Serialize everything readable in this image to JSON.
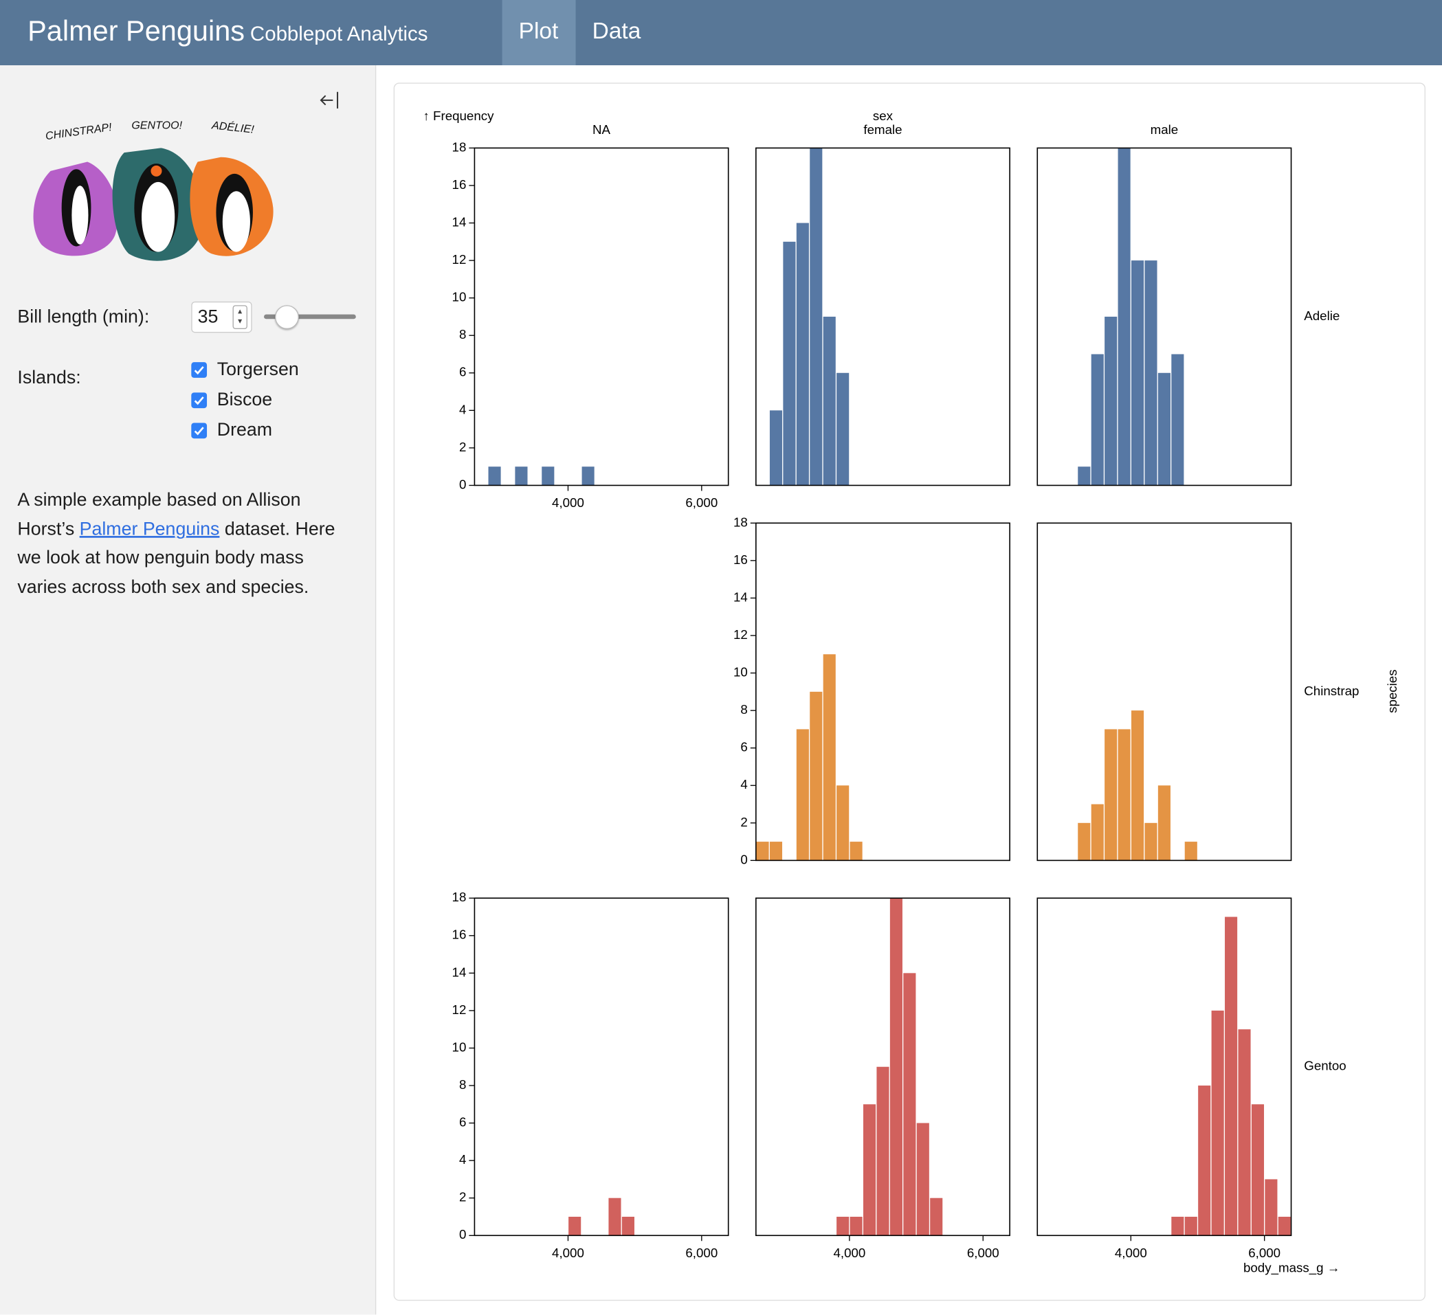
{
  "header": {
    "title": "Palmer Penguins",
    "subtitle": "Cobblepot Analytics",
    "tabs": [
      "Plot",
      "Data"
    ]
  },
  "sidebar": {
    "illustration_labels": [
      "CHINSTRAP!",
      "GENTOO!",
      "ADÉLIE!"
    ],
    "bill_length": {
      "label": "Bill length (min):",
      "value": 35
    },
    "islands": {
      "label": "Islands:",
      "options": [
        {
          "name": "Torgersen",
          "checked": true
        },
        {
          "name": "Biscoe",
          "checked": true
        },
        {
          "name": "Dream",
          "checked": true
        }
      ]
    },
    "description": {
      "before": "A simple example based on Allison Horst’s ",
      "link": "Palmer Penguins",
      "after": " dataset. Here we look at how penguin body mass varies across both sex and species."
    }
  },
  "chart_data": {
    "type": "histogram",
    "y_label": "↑ Frequency",
    "x_label": "body_mass_g →",
    "facet_x_label": "sex",
    "facet_y_label": "species",
    "columns": [
      "NA",
      "female",
      "male"
    ],
    "bins": [
      2600,
      2800,
      3000,
      3200,
      3400,
      3600,
      3800,
      4000,
      4200,
      4400,
      4600,
      4800,
      5000,
      5200,
      5400,
      5600,
      5800,
      6000,
      6200,
      6400
    ],
    "xlim": [
      2600,
      6400
    ],
    "ylim": [
      0,
      18
    ],
    "xticks": [
      {
        "value": 4000,
        "label": "4,000"
      },
      {
        "value": 6000,
        "label": "6,000"
      }
    ],
    "yticks": [
      0,
      2,
      4,
      6,
      8,
      10,
      12,
      14,
      16,
      18
    ],
    "series": [
      {
        "name": "Adelie",
        "color": "#5778a4",
        "values": [
          [
            0,
            1,
            0,
            1,
            0,
            1,
            0,
            0,
            1,
            0,
            0,
            0,
            0,
            0,
            0,
            0,
            0,
            0,
            0
          ],
          [
            0,
            4,
            13,
            14,
            18,
            9,
            6,
            0,
            0,
            0,
            0,
            0,
            0,
            0,
            0,
            0,
            0,
            0,
            0
          ],
          [
            0,
            0,
            0,
            1,
            7,
            9,
            18,
            12,
            12,
            6,
            7,
            0,
            0,
            0,
            0,
            0,
            0,
            0,
            0
          ]
        ]
      },
      {
        "name": "Chinstrap",
        "color": "#e49444",
        "values": [
          null,
          [
            1,
            1,
            0,
            7,
            9,
            11,
            4,
            1,
            0,
            0,
            0,
            0,
            0,
            0,
            0,
            0,
            0,
            0,
            0
          ],
          [
            0,
            0,
            0,
            2,
            3,
            7,
            7,
            8,
            2,
            4,
            0,
            1,
            0,
            0,
            0,
            0,
            0,
            0,
            0
          ]
        ]
      },
      {
        "name": "Gentoo",
        "color": "#d1615d",
        "values": [
          [
            0,
            0,
            0,
            0,
            0,
            0,
            0,
            1,
            0,
            0,
            2,
            1,
            0,
            0,
            0,
            0,
            0,
            0,
            0
          ],
          [
            0,
            0,
            0,
            0,
            0,
            0,
            1,
            1,
            7,
            9,
            18,
            14,
            6,
            2,
            0,
            0,
            0,
            0,
            0
          ],
          [
            0,
            0,
            0,
            0,
            0,
            0,
            0,
            0,
            0,
            0,
            1,
            1,
            8,
            12,
            17,
            11,
            7,
            3,
            1
          ]
        ]
      }
    ]
  }
}
